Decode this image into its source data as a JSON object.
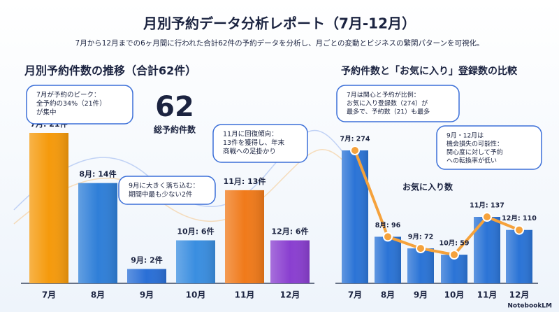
{
  "header": {
    "title": "月別予約データ分析レポート（7月-12月）",
    "subtitle": "7月から12月までの6ヶ月間に行われた合計62件の予約データを分析し、月ごとの変動とビジネスの繁閑パターンを可視化。"
  },
  "chart_data": [
    {
      "type": "bar",
      "title": "月別予約件数の推移（合計62件）",
      "categories": [
        "7月",
        "8月",
        "9月",
        "10月",
        "11月",
        "12月"
      ],
      "values": [
        21,
        14,
        2,
        6,
        13,
        6
      ],
      "value_labels": [
        "7月: 21件",
        "8月: 14件",
        "9月: 2件",
        "10月: 6件",
        "11月: 13件",
        "12月: 6件"
      ],
      "colors": [
        "#f59a0c",
        "#2f7fd8",
        "#2a6fd6",
        "#3a8ee0",
        "#f07a1a",
        "#8a3fd0"
      ],
      "total": 62,
      "total_label": "総予約件数",
      "annotations": [
        {
          "lines": [
            "7月が予約のピーク：",
            "全予約の34%（21件）",
            "が集中"
          ]
        },
        {
          "lines": [
            "9月に大きく落ち込む：",
            "期間中最も少ない2件"
          ]
        },
        {
          "lines": [
            "11月に回復傾向：",
            "13件を獲得し、年末",
            "商戦への足掛かり"
          ]
        }
      ]
    },
    {
      "type": "bar_line",
      "title": "予約件数と「お気に入り」登録数の比較",
      "categories": [
        "7月",
        "8月",
        "9月",
        "10月",
        "11月",
        "12月"
      ],
      "series": [
        {
          "name": "お気に入り数",
          "color": "#f5a23c",
          "bar_color": "#2b74d6",
          "values": [
            274,
            96,
            72,
            59,
            137,
            110
          ],
          "value_labels": [
            "7月: 274",
            "8月: 96",
            "9月: 72",
            "10月: 59",
            "11月: 137",
            "12月: 110"
          ]
        }
      ],
      "annotations": [
        {
          "lines": [
            "7月は関心と予約が比例：",
            "お気に入り登録数（274）が",
            "最多で、予約数（21）も最多"
          ]
        },
        {
          "lines": [
            "9月・12月は",
            "機会損失の可能性：",
            "関心度に対して予約",
            "への転換率が低い"
          ]
        }
      ]
    }
  ],
  "footer": "NotebookLM"
}
